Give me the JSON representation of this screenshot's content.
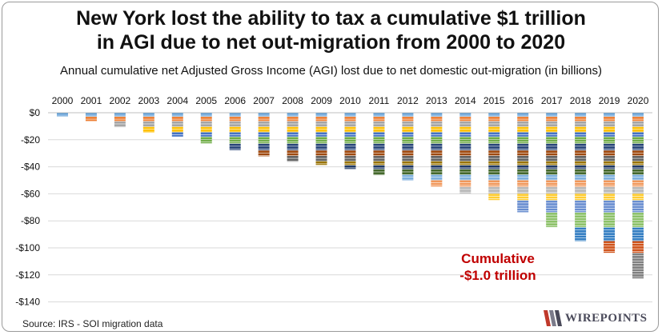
{
  "title_line1": "New York lost the ability to tax a cumulative $1 trillion",
  "title_line2": "in AGI due to net out-migration from 2000 to 2020",
  "subtitle": "Annual cumulative net Adjusted Gross Income (AGI) lost due to net domestic out-migration (in billions)",
  "source": "Source: IRS - SOI migration data",
  "logo_text": "WIREPOINTS",
  "annotation_line1": "Cumulative",
  "annotation_line2": "-$1.0 trillion",
  "annotation_color": "#c00000",
  "chart_data": {
    "type": "bar",
    "stacked": true,
    "categories": [
      "2000",
      "2001",
      "2002",
      "2003",
      "2004",
      "2005",
      "2006",
      "2007",
      "2008",
      "2009",
      "2010",
      "2011",
      "2012",
      "2013",
      "2014",
      "2015",
      "2016",
      "2017",
      "2018",
      "2019",
      "2020"
    ],
    "series": [
      {
        "color": "#5b9bd5",
        "values": [
          -3,
          -3,
          -3,
          -3,
          -3,
          -3,
          -3,
          -3,
          -3,
          -3,
          -3,
          -3,
          -3,
          -3,
          -3,
          -3,
          -3,
          -3,
          -3,
          -3,
          -3
        ]
      },
      {
        "color": "#ed7d31",
        "values": [
          0,
          -3.5,
          -3.5,
          -3.5,
          -3.5,
          -3.5,
          -3.5,
          -3.5,
          -3.5,
          -3.5,
          -3.5,
          -3.5,
          -3.5,
          -3.5,
          -3.5,
          -3.5,
          -3.5,
          -3.5,
          -3.5,
          -3.5,
          -3.5
        ]
      },
      {
        "color": "#a5a5a5",
        "values": [
          0,
          0,
          -4,
          -4,
          -4,
          -4,
          -4,
          -4,
          -4,
          -4,
          -4,
          -4,
          -4,
          -4,
          -4,
          -4,
          -4,
          -4,
          -4,
          -4,
          -4
        ]
      },
      {
        "color": "#ffc000",
        "values": [
          0,
          0,
          0,
          -4,
          -4,
          -4,
          -4,
          -4,
          -4,
          -4,
          -4,
          -4,
          -4,
          -4,
          -4,
          -4,
          -4,
          -4,
          -4,
          -4,
          -4
        ]
      },
      {
        "color": "#4472c4",
        "values": [
          0,
          0,
          0,
          0,
          -3.5,
          -3.5,
          -3.5,
          -3.5,
          -3.5,
          -3.5,
          -3.5,
          -3.5,
          -3.5,
          -3.5,
          -3.5,
          -3.5,
          -3.5,
          -3.5,
          -3.5,
          -3.5,
          -3.5
        ]
      },
      {
        "color": "#70ad47",
        "values": [
          0,
          0,
          0,
          0,
          0,
          -5,
          -5,
          -5,
          -5,
          -5,
          -5,
          -5,
          -5,
          -5,
          -5,
          -5,
          -5,
          -5,
          -5,
          -5,
          -5
        ]
      },
      {
        "color": "#264478",
        "values": [
          0,
          0,
          0,
          0,
          0,
          0,
          -5,
          -5,
          -5,
          -5,
          -5,
          -5,
          -5,
          -5,
          -5,
          -5,
          -5,
          -5,
          -5,
          -5,
          -5
        ]
      },
      {
        "color": "#9e480e",
        "values": [
          0,
          0,
          0,
          0,
          0,
          0,
          0,
          -4,
          -4,
          -4,
          -4,
          -4,
          -4,
          -4,
          -4,
          -4,
          -4,
          -4,
          -4,
          -4,
          -4
        ]
      },
      {
        "color": "#636363",
        "values": [
          0,
          0,
          0,
          0,
          0,
          0,
          0,
          0,
          -4,
          -4,
          -4,
          -4,
          -4,
          -4,
          -4,
          -4,
          -4,
          -4,
          -4,
          -4,
          -4
        ]
      },
      {
        "color": "#997300",
        "values": [
          0,
          0,
          0,
          0,
          0,
          0,
          0,
          0,
          0,
          -3,
          -3,
          -3,
          -3,
          -3,
          -3,
          -3,
          -3,
          -3,
          -3,
          -3,
          -3
        ]
      },
      {
        "color": "#1f3864",
        "values": [
          0,
          0,
          0,
          0,
          0,
          0,
          0,
          0,
          0,
          0,
          -3,
          -3,
          -3,
          -3,
          -3,
          -3,
          -3,
          -3,
          -3,
          -3,
          -3
        ]
      },
      {
        "color": "#43682b",
        "values": [
          0,
          0,
          0,
          0,
          0,
          0,
          0,
          0,
          0,
          0,
          0,
          -4,
          -4,
          -4,
          -4,
          -4,
          -4,
          -4,
          -4,
          -4,
          -4
        ]
      },
      {
        "color": "#7cafdd",
        "values": [
          0,
          0,
          0,
          0,
          0,
          0,
          0,
          0,
          0,
          0,
          0,
          0,
          -4,
          -4,
          -4,
          -4,
          -4,
          -4,
          -4,
          -4,
          -4
        ]
      },
      {
        "color": "#f1975a",
        "values": [
          0,
          0,
          0,
          0,
          0,
          0,
          0,
          0,
          0,
          0,
          0,
          0,
          0,
          -5,
          -5,
          -5,
          -5,
          -5,
          -5,
          -5,
          -5
        ]
      },
      {
        "color": "#b7b7b7",
        "values": [
          0,
          0,
          0,
          0,
          0,
          0,
          0,
          0,
          0,
          0,
          0,
          0,
          0,
          0,
          -5,
          -5,
          -5,
          -5,
          -5,
          -5,
          -5
        ]
      },
      {
        "color": "#ffcd33",
        "values": [
          0,
          0,
          0,
          0,
          0,
          0,
          0,
          0,
          0,
          0,
          0,
          0,
          0,
          0,
          0,
          -5,
          -5,
          -5,
          -5,
          -5,
          -5
        ]
      },
      {
        "color": "#698ed0",
        "values": [
          0,
          0,
          0,
          0,
          0,
          0,
          0,
          0,
          0,
          0,
          0,
          0,
          0,
          0,
          0,
          0,
          -9,
          -9,
          -9,
          -9,
          -9
        ]
      },
      {
        "color": "#8cc168",
        "values": [
          0,
          0,
          0,
          0,
          0,
          0,
          0,
          0,
          0,
          0,
          0,
          0,
          0,
          0,
          0,
          0,
          0,
          -11,
          -11,
          -11,
          -11
        ]
      },
      {
        "color": "#327dc2",
        "values": [
          0,
          0,
          0,
          0,
          0,
          0,
          0,
          0,
          0,
          0,
          0,
          0,
          0,
          0,
          0,
          0,
          0,
          0,
          -10,
          -10,
          -10
        ]
      },
      {
        "color": "#d0541c",
        "values": [
          0,
          0,
          0,
          0,
          0,
          0,
          0,
          0,
          0,
          0,
          0,
          0,
          0,
          0,
          0,
          0,
          0,
          0,
          0,
          -9,
          -9
        ]
      },
      {
        "color": "#808080",
        "values": [
          0,
          0,
          0,
          0,
          0,
          0,
          0,
          0,
          0,
          0,
          0,
          0,
          0,
          0,
          0,
          0,
          0,
          0,
          0,
          0,
          -19
        ]
      }
    ],
    "totals": [
      -3,
      -6.5,
      -10.5,
      -14.5,
      -18,
      -23,
      -28,
      -32,
      -36,
      -39,
      -42,
      -46,
      -50,
      -55,
      -60,
      -65,
      -74,
      -85,
      -95,
      -104,
      -123
    ],
    "ylim": [
      -140,
      0
    ],
    "yticks": [
      0,
      -20,
      -40,
      -60,
      -80,
      -100,
      -120,
      -140
    ],
    "ytick_labels": [
      "$0",
      "-$20",
      "-$40",
      "-$60",
      "-$80",
      "-$100",
      "-$120",
      "-$140"
    ],
    "xaxis_position": "top",
    "grid": true,
    "legend": "none"
  }
}
